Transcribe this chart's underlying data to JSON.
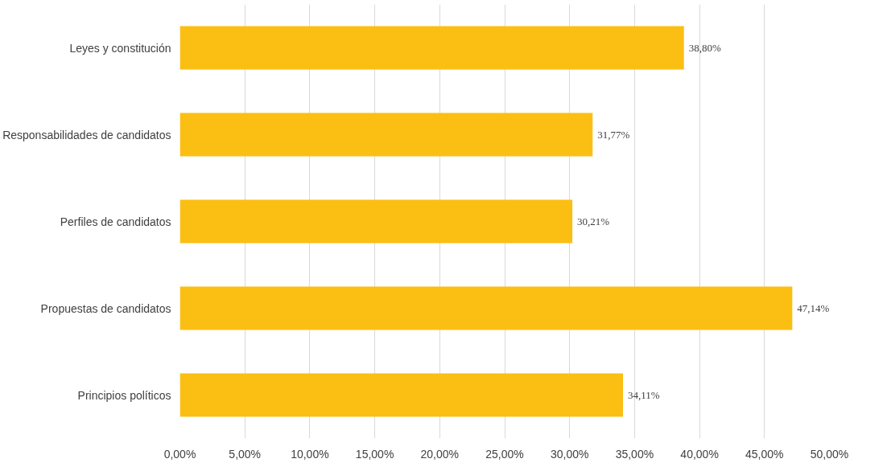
{
  "chart_data": {
    "type": "bar",
    "orientation": "horizontal",
    "categories": [
      "Leyes y constitución",
      "Responsabilidades de candidatos",
      "Perfiles de candidatos",
      "Propuestas de candidatos",
      "Principios políticos"
    ],
    "values": [
      38.8,
      31.77,
      30.21,
      47.14,
      34.11
    ],
    "value_labels": [
      "38,80%",
      "31,77%",
      "30,21%",
      "47,14%",
      "34,11%"
    ],
    "color": "#fbbf14",
    "xlim": [
      0,
      50
    ],
    "xticks": [
      {
        "value": 0,
        "label": "0,00%"
      },
      {
        "value": 5,
        "label": "5,00%"
      },
      {
        "value": 10,
        "label": "10,00%"
      },
      {
        "value": 15,
        "label": "15,00%"
      },
      {
        "value": 20,
        "label": "20,00%"
      },
      {
        "value": 25,
        "label": "25,00%"
      },
      {
        "value": 30,
        "label": "30,00%"
      },
      {
        "value": 35,
        "label": "35,00%"
      },
      {
        "value": 40,
        "label": "40,00%"
      },
      {
        "value": 45,
        "label": "45,00%"
      },
      {
        "value": 50,
        "label": "50,00%"
      }
    ],
    "grid": "x"
  }
}
